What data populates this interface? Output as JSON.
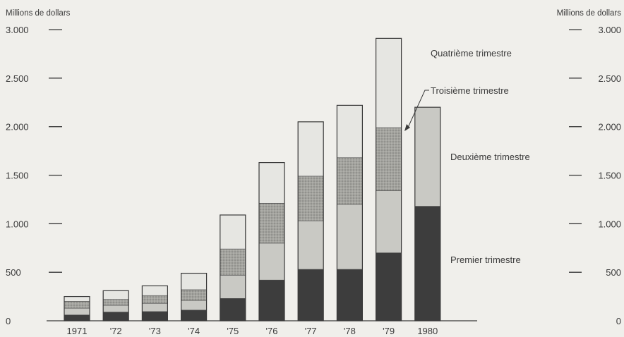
{
  "chart_data": {
    "type": "bar",
    "stacked": true,
    "ylabel_left": "Millions de dollars",
    "ylabel_right": "Millions de dollars",
    "ylim": [
      0,
      3000
    ],
    "left_ticks": [
      {
        "value": 0,
        "label": "0"
      },
      {
        "value": 500,
        "label": "500"
      },
      {
        "value": 1000,
        "label": "1.000"
      },
      {
        "value": 1500,
        "label": "1.500"
      },
      {
        "value": 2000,
        "label": "2.000"
      },
      {
        "value": 2500,
        "label": "2.500"
      },
      {
        "value": 3000,
        "label": "3.000"
      }
    ],
    "right_ticks": [
      {
        "value": 0,
        "label": "0"
      },
      {
        "value": 500,
        "label": "500"
      },
      {
        "value": 1000,
        "label": "1.000"
      },
      {
        "value": 1500,
        "label": "1.500"
      },
      {
        "value": 2000,
        "label": "2.000"
      },
      {
        "value": 2500,
        "label": "2.500"
      },
      {
        "value": 3000,
        "label": "3.000"
      }
    ],
    "categories": [
      "1971",
      "'72",
      "'73",
      "'74",
      "'75",
      "'76",
      "'77",
      "'78",
      "'79",
      "1980"
    ],
    "series": [
      {
        "name": "Premier trimestre",
        "color": "#3d3d3d",
        "values": [
          60,
          90,
          95,
          110,
          230,
          420,
          530,
          530,
          700,
          1180
        ]
      },
      {
        "name": "Deuxième trimestre",
        "color": "#c9c9c4",
        "values": [
          70,
          70,
          85,
          100,
          240,
          380,
          500,
          670,
          640,
          1020
        ]
      },
      {
        "name": "Troisième trimestre",
        "color": "#9b9b96",
        "values": [
          70,
          60,
          80,
          110,
          270,
          410,
          460,
          480,
          650,
          null
        ]
      },
      {
        "name": "Quatrième trimestre",
        "color": "#e6e6e2",
        "values": [
          50,
          90,
          100,
          170,
          350,
          420,
          560,
          540,
          920,
          null
        ]
      }
    ],
    "legend": [
      {
        "label": "Quatrième trimestre",
        "position": "upper right"
      },
      {
        "label": "Troisième trimestre",
        "position": "right, with pointer to 1979 bar"
      },
      {
        "label": "Deuxième trimestre",
        "position": "middle right"
      },
      {
        "label": "Premier trimestre",
        "position": "lower right"
      }
    ]
  }
}
